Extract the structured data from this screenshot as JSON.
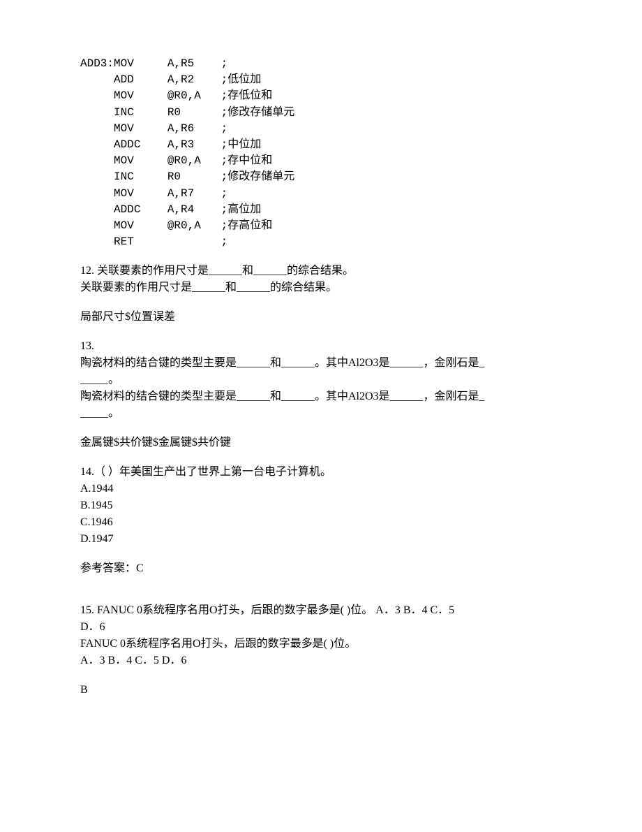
{
  "code": {
    "lines": [
      {
        "label": "ADD3:",
        "op": "MOV",
        "args": "A,R5",
        "comment": ";"
      },
      {
        "label": "",
        "op": "ADD",
        "args": "A,R2",
        "comment": ";低位加"
      },
      {
        "label": "",
        "op": "MOV",
        "args": "@R0,A",
        "comment": ";存低位和"
      },
      {
        "label": "",
        "op": "INC",
        "args": "R0",
        "comment": ";修改存储单元"
      },
      {
        "label": "",
        "op": "MOV",
        "args": "A,R6",
        "comment": ";"
      },
      {
        "label": "",
        "op": "ADDC",
        "args": "A,R3",
        "comment": ";中位加"
      },
      {
        "label": "",
        "op": "MOV",
        "args": "@R0,A",
        "comment": ";存中位和"
      },
      {
        "label": "",
        "op": "INC",
        "args": "R0",
        "comment": ";修改存储单元"
      },
      {
        "label": "",
        "op": "MOV",
        "args": "A,R7",
        "comment": ";"
      },
      {
        "label": "",
        "op": "ADDC",
        "args": "A,R4",
        "comment": ";高位加"
      },
      {
        "label": "",
        "op": "MOV",
        "args": "@R0,A",
        "comment": ";存高位和"
      },
      {
        "label": "",
        "op": "RET",
        "args": "",
        "comment": ";"
      }
    ]
  },
  "q12": {
    "line1": "12. 关联要素的作用尺寸是______和______的综合结果。",
    "line2": "关联要素的作用尺寸是______和______的综合结果。",
    "answer": "局部尺寸$位置误差"
  },
  "q13": {
    "num": "13.",
    "line1": "陶瓷材料的结合键的类型主要是______和______。其中Al2O3是______，金刚石是_",
    "line1b": "_____。",
    "line2": "陶瓷材料的结合键的类型主要是______和______。其中Al2O3是______，金刚石是_",
    "line2b": "_____。",
    "answer": "金属键$共价键$金属键$共价键"
  },
  "q14": {
    "stem": "14.（  ）年美国生产出了世界上第一台电子计算机。",
    "optA": "A.1944",
    "optB": "B.1945",
    "optC": "C.1946",
    "optD": "D.1947",
    "answer": "参考答案：C"
  },
  "q15": {
    "line1": "15. FANUC 0系统程序名用O打头，后跟的数字最多是(  )位。   A．3  B．4  C．5",
    "line1b": "D．6",
    "line2": "FANUC 0系统程序名用O打头，后跟的数字最多是(  )位。",
    "line3": "  A．3  B．4  C．5 D．6",
    "answer": "B"
  },
  "style": {
    "text_color": "#000000",
    "background": "#ffffff",
    "font_size": 16,
    "code_font": "Courier New"
  }
}
